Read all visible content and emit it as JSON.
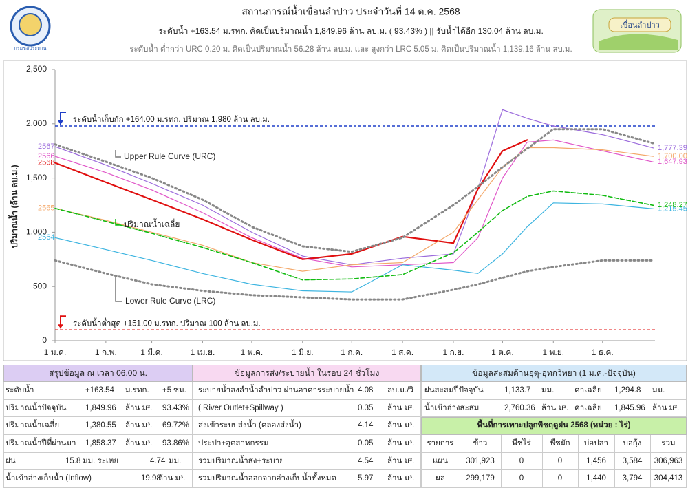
{
  "header": {
    "title": "สถานการณ์น้ำเขื่อนลำปาว ประจำวันที่ 14 ต.ค. 2568",
    "line2": "ระดับน้ำ +163.54 ม.รทก.  คิดเป็นปริมาณน้ำ 1,849.96 ล้าน ลบ.ม. ( 93.43% )  || รับน้ำได้อีก 130.04 ล้าน ลบ.ม.",
    "line3": "ระดับน้ำ ต่ำกว่า URC 0.20 ม. คิดเป็นปริมาณน้ำ 56.28 ล้าน ลบ.ม. และ สูงกว่า LRC 5.05 ม. คิดเป็นปริมาณน้ำ 1,139.16 ล้าน ลบ.ม.",
    "logo_left_text": "กรมชลประทาน",
    "logo_right_text": "เขื่อนลำปาว"
  },
  "chart_data": {
    "type": "line",
    "y_label": "ปริมาณน้ำ (ล้าน ลบ.ม.)",
    "x": [
      0,
      31,
      59,
      90,
      120,
      151,
      181,
      212,
      243,
      258,
      273,
      288,
      304,
      334,
      365
    ],
    "xlim": [
      0,
      366
    ],
    "xticks": [
      {
        "value": 0,
        "label": "1 ม.ค."
      },
      {
        "value": 31,
        "label": "1 ก.พ."
      },
      {
        "value": 59,
        "label": "1 มี.ค."
      },
      {
        "value": 90,
        "label": "1 เม.ย."
      },
      {
        "value": 120,
        "label": "1 พ.ค."
      },
      {
        "value": 151,
        "label": "1 มิ.ย."
      },
      {
        "value": 181,
        "label": "1 ก.ค."
      },
      {
        "value": 212,
        "label": "1 ส.ค."
      },
      {
        "value": 243,
        "label": "1 ก.ย."
      },
      {
        "value": 273,
        "label": "1 ต.ค."
      },
      {
        "value": 304,
        "label": "1 พ.ย."
      },
      {
        "value": 334,
        "label": "1 ธ.ค."
      }
    ],
    "ylim": [
      0,
      2500
    ],
    "yticks": [
      0,
      500,
      {
        "value": 1000,
        "label": "1,000"
      },
      {
        "value": 1500,
        "label": "1,500"
      },
      {
        "value": 2000,
        "label": "2,000"
      },
      {
        "value": 2500,
        "label": "2,500"
      }
    ],
    "grid": false,
    "series": [
      {
        "name": "2567",
        "color": "#9b6bdc",
        "style": "solid",
        "values": [
          1790,
          1620,
          1450,
          1250,
          1000,
          780,
          700,
          760,
          800,
          1400,
          2130,
          2050,
          1980,
          1900,
          1777.39
        ],
        "value_labels": [
          null,
          null,
          null,
          null,
          null,
          null,
          null,
          null,
          null,
          null,
          null,
          null,
          null,
          null,
          "1,777.39"
        ]
      },
      {
        "name": "2566",
        "color": "#e055c8",
        "style": "solid",
        "values": [
          1700,
          1550,
          1390,
          1180,
          950,
          760,
          680,
          700,
          720,
          950,
          1500,
          1830,
          1850,
          1750,
          1647.93
        ],
        "value_labels": [
          null,
          null,
          null,
          null,
          null,
          null,
          null,
          null,
          null,
          null,
          null,
          null,
          null,
          null,
          "1,647.93"
        ]
      },
      {
        "name": "2568",
        "color": "#e01010",
        "style": "solid",
        "values": [
          1640,
          1460,
          1300,
          1120,
          930,
          750,
          800,
          960,
          900,
          1400,
          1750,
          1850,
          null,
          null,
          null
        ]
      },
      {
        "name": "2565",
        "color": "#f4a86a",
        "style": "solid",
        "values": [
          1220,
          1110,
          1000,
          880,
          720,
          640,
          700,
          720,
          1000,
          1300,
          1600,
          1780,
          1780,
          1760,
          1700
        ],
        "value_labels": [
          null,
          null,
          null,
          null,
          null,
          null,
          null,
          null,
          null,
          null,
          null,
          null,
          null,
          null,
          "1,700.00"
        ]
      },
      {
        "name": "2564",
        "color": "#3cb4e0",
        "style": "solid",
        "values": [
          950,
          840,
          740,
          620,
          520,
          460,
          450,
          700,
          650,
          620,
          800,
          1050,
          1270,
          1260,
          1215.45
        ],
        "value_labels": [
          null,
          null,
          null,
          null,
          null,
          null,
          null,
          null,
          null,
          null,
          null,
          null,
          null,
          null,
          "1,215.45"
        ]
      },
      {
        "name": "ปริมาณน้ำเฉลี่ย",
        "color": "#11bb11",
        "style": "dashed",
        "values": [
          1220,
          1100,
          990,
          860,
          720,
          560,
          570,
          610,
          810,
          1000,
          1200,
          1330,
          1380,
          1340,
          1248.27
        ],
        "value_labels": [
          null,
          null,
          null,
          null,
          null,
          null,
          null,
          null,
          null,
          null,
          null,
          null,
          null,
          null,
          "1,248.27"
        ]
      },
      {
        "name": "Upper Rule Curve (URC)",
        "color": "#888888",
        "style": "dotted",
        "values": [
          1810,
          1650,
          1500,
          1300,
          1050,
          870,
          820,
          950,
          1250,
          1420,
          1600,
          1770,
          1950,
          1950,
          1820
        ]
      },
      {
        "name": "Lower Rule Curve (LRC)",
        "color": "#888888",
        "style": "dotted",
        "values": [
          740,
          620,
          520,
          460,
          420,
          400,
          380,
          380,
          470,
          520,
          580,
          640,
          680,
          740,
          740
        ]
      }
    ],
    "reference_lines": [
      {
        "label": "ระดับน้ำเก็บกัก +164.00 ม.รทก. ปริมาณ 1,980 ล้าน ลบ.ม.",
        "value": 1980,
        "color": "#1f3fc8"
      },
      {
        "label": "ระดับน้ำต่ำสุด +151.00 ม.รทก. ปริมาณ 100 ล้าน ลบ.ม.",
        "value": 100,
        "color": "#e01010"
      }
    ]
  },
  "summary": {
    "title": "สรุปข้อมูล ณ เวลา 06.00 น.",
    "rows": [
      [
        "ระดับน้ำ",
        "+163.54",
        "ม.รทก.",
        "+5 ซม."
      ],
      [
        "ปริมาณน้ำปัจจุบัน",
        "1,849.96",
        "ล้าน ม³.",
        "93.43%"
      ],
      [
        "ปริมาณน้ำเฉลี่ย",
        "1,380.55",
        "ล้าน ม³.",
        "69.72%"
      ],
      [
        "ปริมาณน้ำปีที่ผ่านมา",
        "1,858.37",
        "ล้าน ม³.",
        "93.86%"
      ],
      [
        "ฝน",
        "15.8",
        "มม. ระเหย",
        "4.74",
        "มม."
      ],
      [
        "น้ำเข้าอ่างเก็บน้ำ (Inflow)",
        "19.98",
        "ล้าน ม³."
      ]
    ]
  },
  "release": {
    "title": "ข้อมูลการส่ง/ระบายน้ำ ในรอบ 24 ชั่วโมง",
    "rows": [
      [
        "ระบายน้ำลงลำน้ำลำปาว ผ่านอาคารระบายน้ำ",
        "4.08",
        "ลบ.ม./วิ"
      ],
      [
        "( River Outlet+Spillway )",
        "0.35",
        "ล้าน ม³."
      ],
      [
        "ส่งเข้าระบบส่งน้ำ (คลองส่งน้ำ)",
        "4.14",
        "ล้าน ม³."
      ],
      [
        "ประปา+อุตสาหกรรม",
        "0.05",
        "ล้าน ม³."
      ],
      [
        "รวมปริมาณน้ำส่ง+ระบาย",
        "4.54",
        "ล้าน ม³."
      ],
      [
        "รวมปริมาณน้ำออกจากอ่างเก็บน้ำทั้งหมด",
        "5.97",
        "ล้าน ม³."
      ]
    ]
  },
  "hydrology": {
    "title": "ข้อมูลสะสมด้านอุตุ-อุทกวิทยา (1 ม.ค.-ปัจจุบัน)",
    "rows": [
      [
        "ฝนสะสมปีปัจจุบัน",
        "1,133.7",
        "มม.",
        "ค่าเฉลี่ย",
        "1,294.8",
        "มม."
      ],
      [
        "น้ำเข้าอ่างสะสม",
        "2,760.36",
        "ล้าน ม³.",
        "ค่าเฉลี่ย",
        "1,845.96",
        "ล้าน ม³."
      ]
    ],
    "crop": {
      "title": "พื้นที่การเพาะปลูกพืชฤดูฝน 2568 (หน่วย : ไร่)",
      "columns": [
        "รายการ",
        "ข้าว",
        "พืชไร่",
        "พืชผัก",
        "บ่อปลา",
        "บ่อกุ้ง",
        "รวม"
      ],
      "rows": [
        [
          "แผน",
          "301,923",
          "0",
          "0",
          "1,456",
          "3,584",
          "306,963"
        ],
        [
          "ผล",
          "299,179",
          "0",
          "0",
          "1,440",
          "3,794",
          "304,413"
        ]
      ]
    }
  }
}
